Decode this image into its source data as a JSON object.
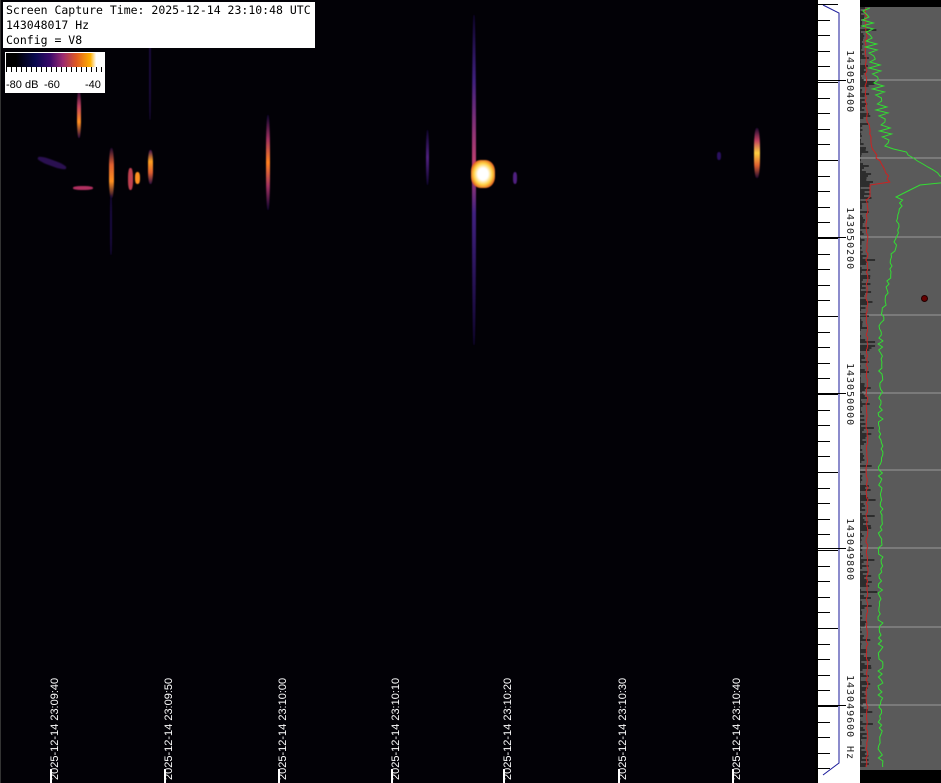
{
  "info": {
    "capture_time": "Screen Capture Time: 2025-12-14 23:10:48 UTC",
    "frequency": "143048017 Hz",
    "config": "Config = V8"
  },
  "colorbar": {
    "label_min": "-80 dB",
    "label_mid": "-60",
    "label_max": "-40",
    "range_db": [
      -80,
      -40
    ]
  },
  "time_axis": {
    "labels": [
      "2025-12-14 23:09:40",
      "2025-12-14 23:09:50",
      "2025-12-14 23:10:00",
      "2025-12-14 23:10:10",
      "2025-12-14 23:10:20",
      "2025-12-14 23:10:30",
      "2025-12-14 23:10:40"
    ]
  },
  "freq_axis": {
    "labels": [
      "143050400",
      "143050200",
      "143050000",
      "143049800",
      "143049600"
    ],
    "unit": "Hz"
  },
  "colors": {
    "spectrum_current": "#33dd33",
    "spectrum_average": "#cc2222",
    "panel_bg": "#5a5a5a",
    "scale_line": "#1a1a9a"
  }
}
